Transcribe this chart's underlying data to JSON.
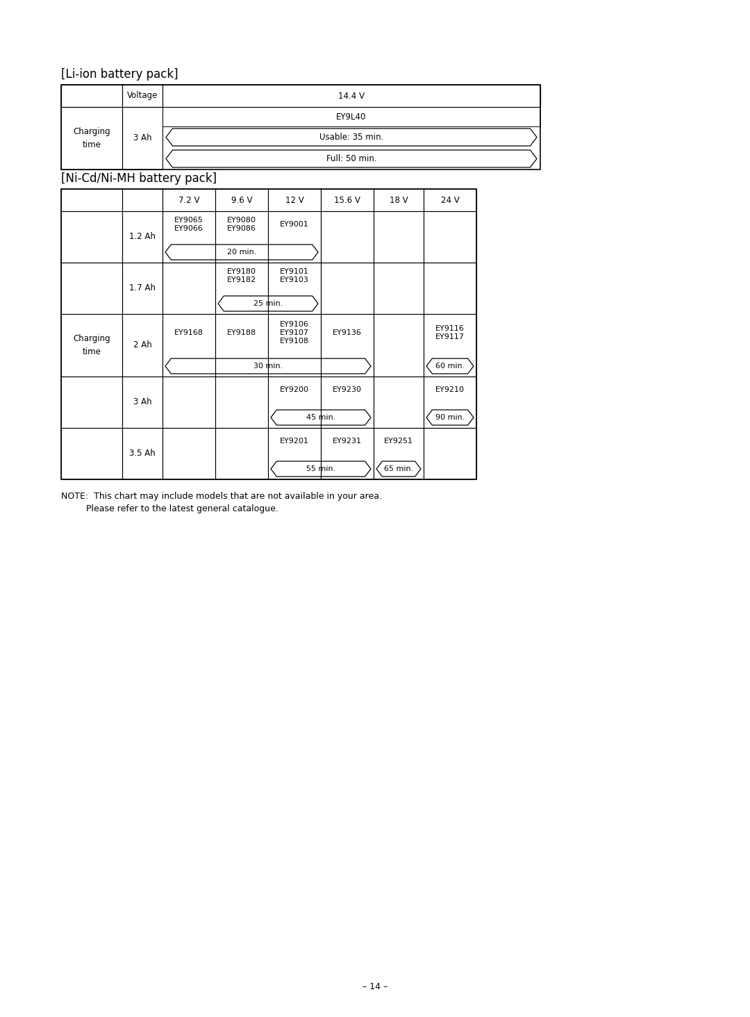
{
  "title_liion": "[Li-ion battery pack]",
  "title_nimh": "[Ni-Cd/Ni-MH battery pack]",
  "note_line1": "NOTE:  This chart may include models that are not available in your area.",
  "note_line2": "         Please refer to the latest general catalogue.",
  "page_number": "– 14 –",
  "bg_color": "#ffffff",
  "text_color": "#000000",
  "font_size_title": 12,
  "font_size_cell": 8.5,
  "font_size_note": 9,
  "font_size_page": 9
}
